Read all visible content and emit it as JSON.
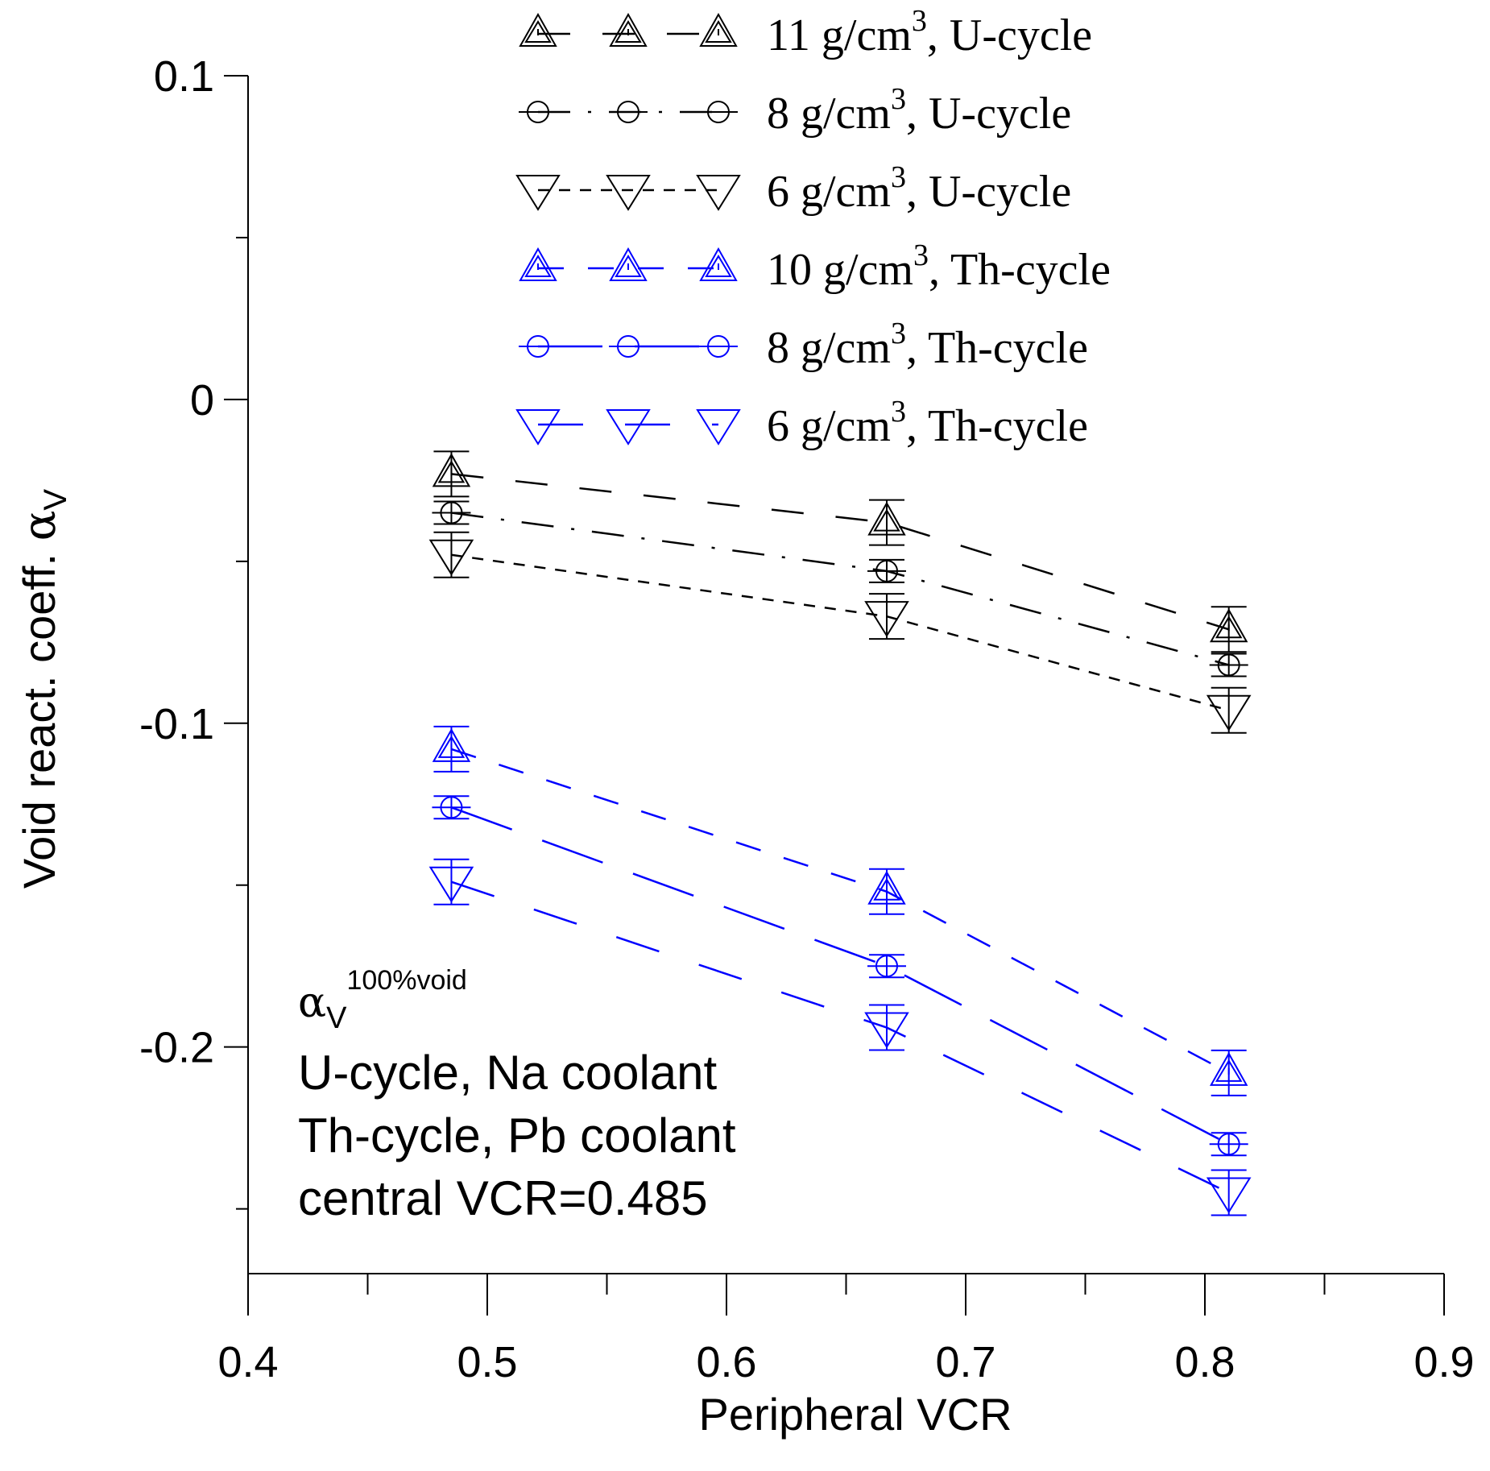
{
  "chart_data": {
    "type": "line",
    "title": "",
    "xlabel": "Peripheral VCR",
    "ylabel": {
      "main": "Void react. coeff. ",
      "symbol": "α",
      "subscript": "V"
    },
    "xlim": [
      0.4,
      0.9
    ],
    "ylim": [
      -0.27,
      0.1
    ],
    "x_ticks": [
      0.4,
      0.5,
      0.6,
      0.7,
      0.8,
      0.9
    ],
    "x_tick_labels": [
      "0.4",
      "0.5",
      "0.6",
      "0.7",
      "0.8",
      "0.9"
    ],
    "x_minor_ticks": [
      0.45,
      0.55,
      0.65,
      0.75,
      0.85
    ],
    "y_ticks": [
      0.1,
      0,
      -0.1,
      -0.2
    ],
    "y_tick_labels": [
      "0.1",
      "0",
      "-0.1",
      "-0.2"
    ],
    "y_minor_ticks": [
      0.05,
      -0.05,
      -0.15,
      -0.25
    ],
    "legend_position": "top-right",
    "series": [
      {
        "name": "11 g/cm3, U-cycle",
        "label_pre": "11 g/cm",
        "label_sup": "3",
        "label_post": ", U-cycle",
        "color": "#000000",
        "marker": "triangle-up",
        "dash": "40 40",
        "x": [
          0.485,
          0.667,
          0.81
        ],
        "y": [
          -0.023,
          -0.038,
          -0.071
        ]
      },
      {
        "name": "8 g/cm3, U-cycle",
        "label_pre": "8 g/cm",
        "label_sup": "3",
        "label_post": ", U-cycle",
        "color": "#000000",
        "marker": "circle",
        "dash": "40 22 4 22",
        "x": [
          0.485,
          0.667,
          0.81
        ],
        "y": [
          -0.035,
          -0.053,
          -0.082
        ]
      },
      {
        "name": "6 g/cm3, U-cycle",
        "label_pre": "6 g/cm",
        "label_sup": "3",
        "label_post": ", U-cycle",
        "color": "#000000",
        "marker": "triangle-down",
        "dash": "14 12",
        "x": [
          0.485,
          0.667,
          0.81
        ],
        "y": [
          -0.048,
          -0.067,
          -0.096
        ]
      },
      {
        "name": "10 g/cm3, Th-cycle",
        "label_pre": "10 g/cm",
        "label_sup": "3",
        "label_post": ", Th-cycle",
        "color": "#0000ff",
        "marker": "triangle-up",
        "dash": "32 30",
        "x": [
          0.485,
          0.667,
          0.81
        ],
        "y": [
          -0.108,
          -0.152,
          -0.208
        ]
      },
      {
        "name": "8 g/cm3, Th-cycle",
        "label_pre": "8 g/cm",
        "label_sup": "3",
        "label_post": ", Th-cycle",
        "color": "#0000ff",
        "marker": "circle",
        "dash": "80 40",
        "x": [
          0.485,
          0.667,
          0.81
        ],
        "y": [
          -0.126,
          -0.175,
          -0.23
        ]
      },
      {
        "name": "6 g/cm3, Th-cycle",
        "label_pre": "6 g/cm",
        "label_sup": "3",
        "label_post": ", Th-cycle",
        "color": "#0000ff",
        "marker": "triangle-down",
        "dash": "56 52",
        "x": [
          0.485,
          0.667,
          0.81
        ],
        "y": [
          -0.149,
          -0.194,
          -0.245
        ]
      }
    ],
    "annotations": {
      "symbol": "α",
      "subscript": "V",
      "superscript": "100%void",
      "lines": [
        "U-cycle, Na coolant",
        "Th-cycle, Pb coolant",
        "central VCR=0.485"
      ]
    }
  }
}
